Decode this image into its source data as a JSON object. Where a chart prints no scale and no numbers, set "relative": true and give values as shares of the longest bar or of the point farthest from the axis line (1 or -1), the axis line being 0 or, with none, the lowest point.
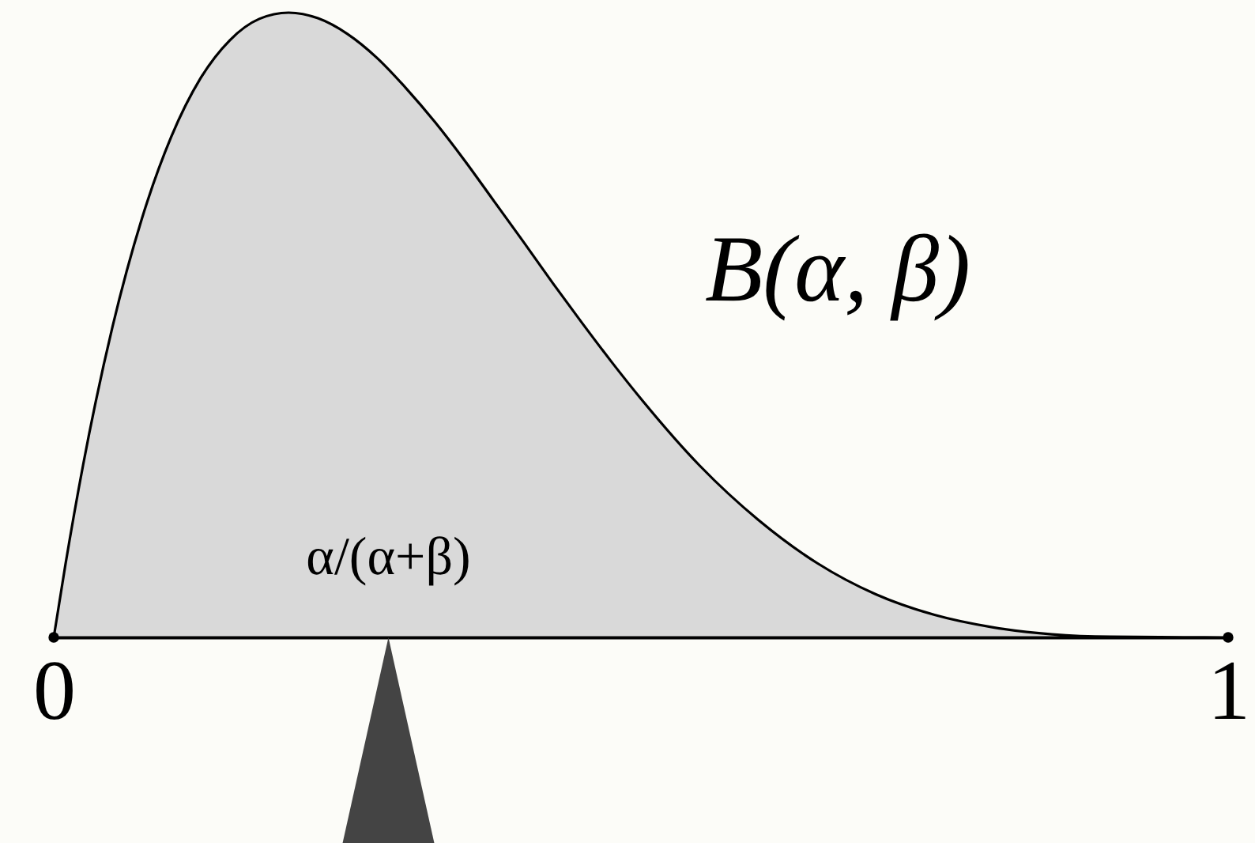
{
  "chart_data": {
    "type": "area",
    "relative": true,
    "color": "#d9d9d9",
    "x": [
      0,
      0.01,
      0.025,
      0.05,
      0.075,
      0.1,
      0.125,
      0.15,
      0.175,
      0.2,
      0.225,
      0.25,
      0.275,
      0.3,
      0.325,
      0.35,
      0.375,
      0.4,
      0.425,
      0.45,
      0.475,
      0.5,
      0.55,
      0.6,
      0.65,
      0.7,
      0.75,
      0.8,
      0.85,
      0.9,
      1
    ],
    "values": [
      0,
      0.117,
      0.276,
      0.497,
      0.67,
      0.801,
      0.895,
      0.956,
      0.99,
      1,
      0.991,
      0.966,
      0.928,
      0.879,
      0.824,
      0.763,
      0.698,
      0.633,
      0.567,
      0.503,
      0.441,
      0.382,
      0.275,
      0.188,
      0.119,
      0.069,
      0.036,
      0.016,
      0.005,
      0.001,
      0
    ],
    "xlim": [
      0,
      1
    ],
    "xticks": [
      0,
      1
    ],
    "annotations": [
      "B(α, β)",
      {
        "text": "α/(α+β)",
        "x": 0.285,
        "y": 0
      }
    ]
  }
}
